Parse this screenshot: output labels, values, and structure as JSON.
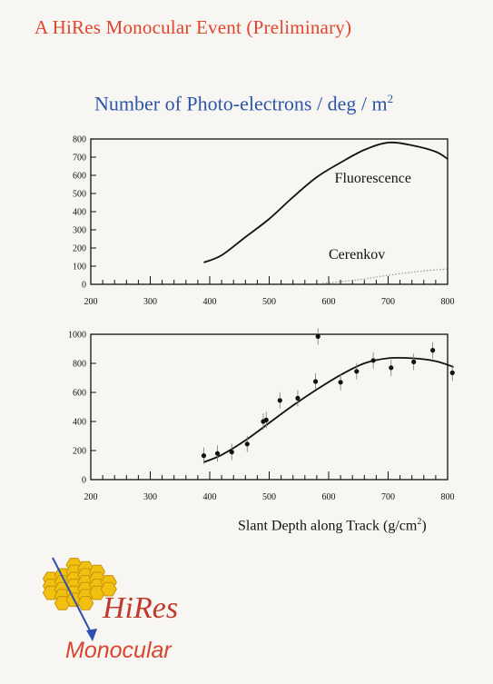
{
  "header": {
    "title": "A HiRes Monocular Event  (Preliminary)",
    "plot_title": "Number of Photo-electrons / deg / m",
    "plot_title_sup": "2"
  },
  "xlabel": {
    "text": "Slant Depth along Track (g/cm",
    "sup": "2",
    "close": ")"
  },
  "logo": {
    "name": "HiRes",
    "sub": "Monocular",
    "colors": {
      "hex": "#f2c10f",
      "hex_edge": "#c7920a",
      "text": "#c0392b",
      "arrow": "#2c4fb0"
    }
  },
  "chart_data": [
    {
      "type": "line",
      "xlim": [
        200,
        800
      ],
      "ylim": [
        0,
        800
      ],
      "x_ticks": [
        200,
        300,
        400,
        500,
        600,
        700,
        800
      ],
      "y_ticks": [
        0,
        100,
        200,
        300,
        400,
        500,
        600,
        700,
        800
      ],
      "series": [
        {
          "name": "Fluorescence",
          "x": [
            390,
            420,
            460,
            500,
            540,
            580,
            620,
            660,
            700,
            740,
            780,
            800
          ],
          "y": [
            120,
            160,
            260,
            360,
            480,
            590,
            670,
            740,
            780,
            765,
            730,
            690
          ]
        },
        {
          "name": "Cerenkov",
          "x": [
            590,
            650,
            700,
            750,
            800
          ],
          "y": [
            5,
            25,
            50,
            70,
            85
          ]
        }
      ]
    },
    {
      "type": "scatter",
      "xlim": [
        200,
        800
      ],
      "ylim": [
        0,
        1000
      ],
      "x_ticks": [
        200,
        300,
        400,
        500,
        600,
        700,
        800
      ],
      "y_ticks": [
        0,
        200,
        400,
        600,
        800,
        1000
      ],
      "points": {
        "x": [
          390,
          413,
          437,
          463,
          490,
          495,
          518,
          548,
          578,
          582,
          620,
          647,
          675,
          705,
          743,
          775,
          808
        ],
        "y": [
          165,
          180,
          190,
          245,
          400,
          410,
          545,
          560,
          675,
          985,
          670,
          745,
          820,
          770,
          810,
          890,
          735
        ]
      },
      "fit": {
        "x": [
          390,
          420,
          460,
          500,
          540,
          580,
          620,
          660,
          700,
          740,
          780,
          810
        ],
        "y": [
          120,
          170,
          270,
          390,
          510,
          620,
          720,
          800,
          835,
          835,
          815,
          775
        ]
      }
    }
  ]
}
